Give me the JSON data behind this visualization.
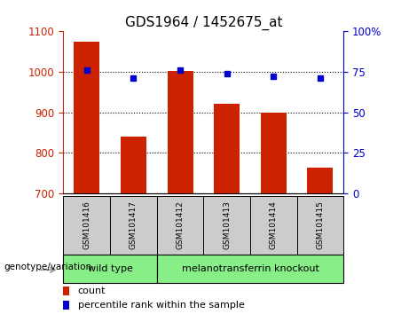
{
  "title": "GDS1964 / 1452675_at",
  "samples": [
    "GSM101416",
    "GSM101417",
    "GSM101412",
    "GSM101413",
    "GSM101414",
    "GSM101415"
  ],
  "bar_values": [
    1075,
    840,
    1002,
    922,
    898,
    762
  ],
  "percentile_values": [
    76,
    71,
    76,
    74,
    72,
    71
  ],
  "ylim_left": [
    700,
    1100
  ],
  "ylim_right": [
    0,
    100
  ],
  "yticks_left": [
    700,
    800,
    900,
    1000,
    1100
  ],
  "yticks_right": [
    0,
    25,
    50,
    75,
    100
  ],
  "yticklabels_right": [
    "0",
    "25",
    "50",
    "75",
    "100%"
  ],
  "bar_color": "#cc2200",
  "dot_color": "#0000cc",
  "bar_baseline": 700,
  "group1_label": "wild type",
  "group2_label": "melanotransferrin knockout",
  "group_bg_color": "#88ee88",
  "tick_label_bg": "#cccccc",
  "left_tick_color": "#cc2200",
  "right_tick_color": "#0000cc",
  "legend_count_color": "#cc2200",
  "legend_dot_color": "#0000cc",
  "xlabel_left": "genotype/variation",
  "arrow_color": "#999999",
  "fig_bg": "#ffffff"
}
